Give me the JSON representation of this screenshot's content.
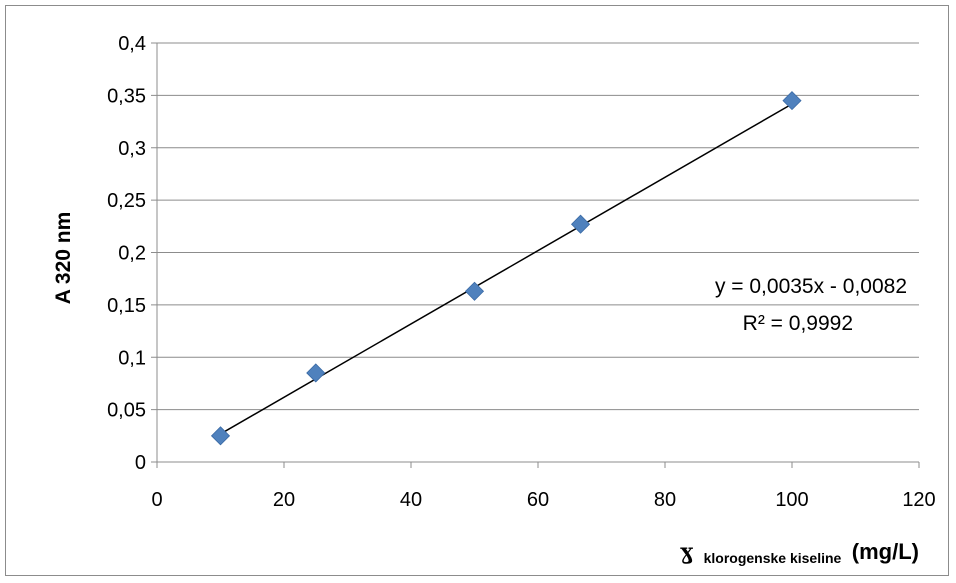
{
  "chart_data": {
    "type": "scatter",
    "x": [
      10,
      25,
      50,
      66.7,
      100
    ],
    "y": [
      0.025,
      0.085,
      0.163,
      0.227,
      0.345
    ],
    "xlim": [
      0,
      120
    ],
    "ylim": [
      0,
      0.4
    ],
    "x_ticks": [
      "0",
      "20",
      "40",
      "60",
      "80",
      "100",
      "120"
    ],
    "y_ticks": [
      "0",
      "0,05",
      "0,1",
      "0,15",
      "0,2",
      "0,25",
      "0,3",
      "0,35",
      "0,4"
    ],
    "xlabel": {
      "symbol": "ɣ",
      "subscript": "klorogenske kiseline",
      "unit": "(mg/L)"
    },
    "ylabel": "A 320 nm",
    "grid": "horizontal",
    "marker": "diamond",
    "marker_color": "#4f81bd",
    "trendline": {
      "type": "linear",
      "slope": 0.0035,
      "intercept": -0.0082,
      "from_x": 10,
      "to_x": 100,
      "color": "#000000",
      "equation_label": "y = 0,0035x - 0,0082",
      "r2_label": "R² = 0,9992"
    }
  }
}
